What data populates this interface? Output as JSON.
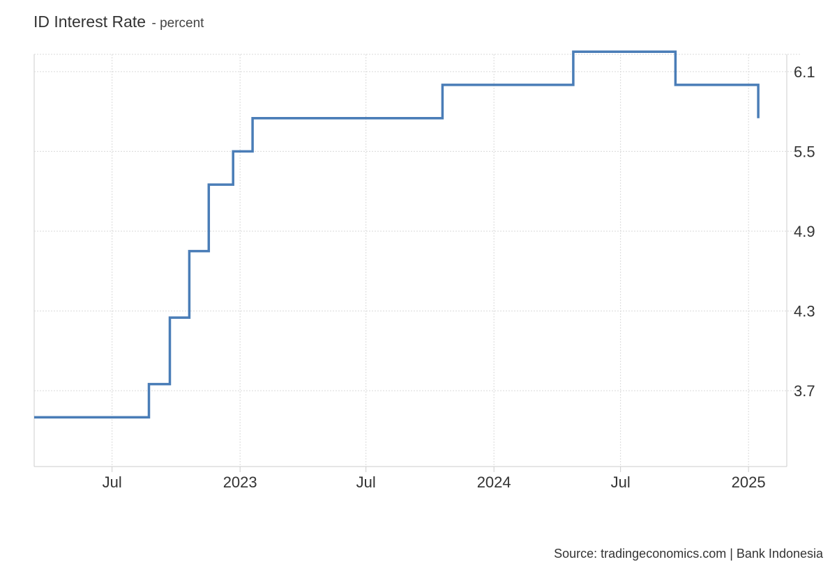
{
  "title": "ID Interest Rate",
  "unit_suffix": "- percent",
  "source": "Source: tradingeconomics.com | Bank Indonesia",
  "colors": {
    "line": "#4a7db7",
    "grid": "#d9d9d9",
    "axis": "#cccccc"
  },
  "chart_data": {
    "type": "line",
    "step": true,
    "title": "ID Interest Rate",
    "ylabel": "percent",
    "xlabel": "",
    "ylim": [
      3.13,
      6.23
    ],
    "xlim": [
      "2022-03-11",
      "2025-02-25"
    ],
    "grid": true,
    "y_axis_position": "right",
    "x_ticks": [
      {
        "date": "2022-07-01",
        "label": "Jul"
      },
      {
        "date": "2023-01-01",
        "label": "2023"
      },
      {
        "date": "2023-07-01",
        "label": "Jul"
      },
      {
        "date": "2024-01-01",
        "label": "2024"
      },
      {
        "date": "2024-07-01",
        "label": "Jul"
      },
      {
        "date": "2025-01-01",
        "label": "2025"
      }
    ],
    "y_ticks": [
      3.7,
      4.3,
      4.9,
      5.5,
      6.1
    ],
    "series": [
      {
        "points": [
          {
            "date": "2022-03-11",
            "value": 3.5
          },
          {
            "date": "2022-08-23",
            "value": 3.75
          },
          {
            "date": "2022-09-22",
            "value": 4.25
          },
          {
            "date": "2022-10-20",
            "value": 4.75
          },
          {
            "date": "2022-11-17",
            "value": 5.25
          },
          {
            "date": "2022-12-22",
            "value": 5.5
          },
          {
            "date": "2023-01-19",
            "value": 5.75
          },
          {
            "date": "2023-10-19",
            "value": 6.0
          },
          {
            "date": "2024-04-24",
            "value": 6.25
          },
          {
            "date": "2024-09-18",
            "value": 6.0
          },
          {
            "date": "2025-01-15",
            "value": 5.75
          }
        ]
      }
    ]
  }
}
